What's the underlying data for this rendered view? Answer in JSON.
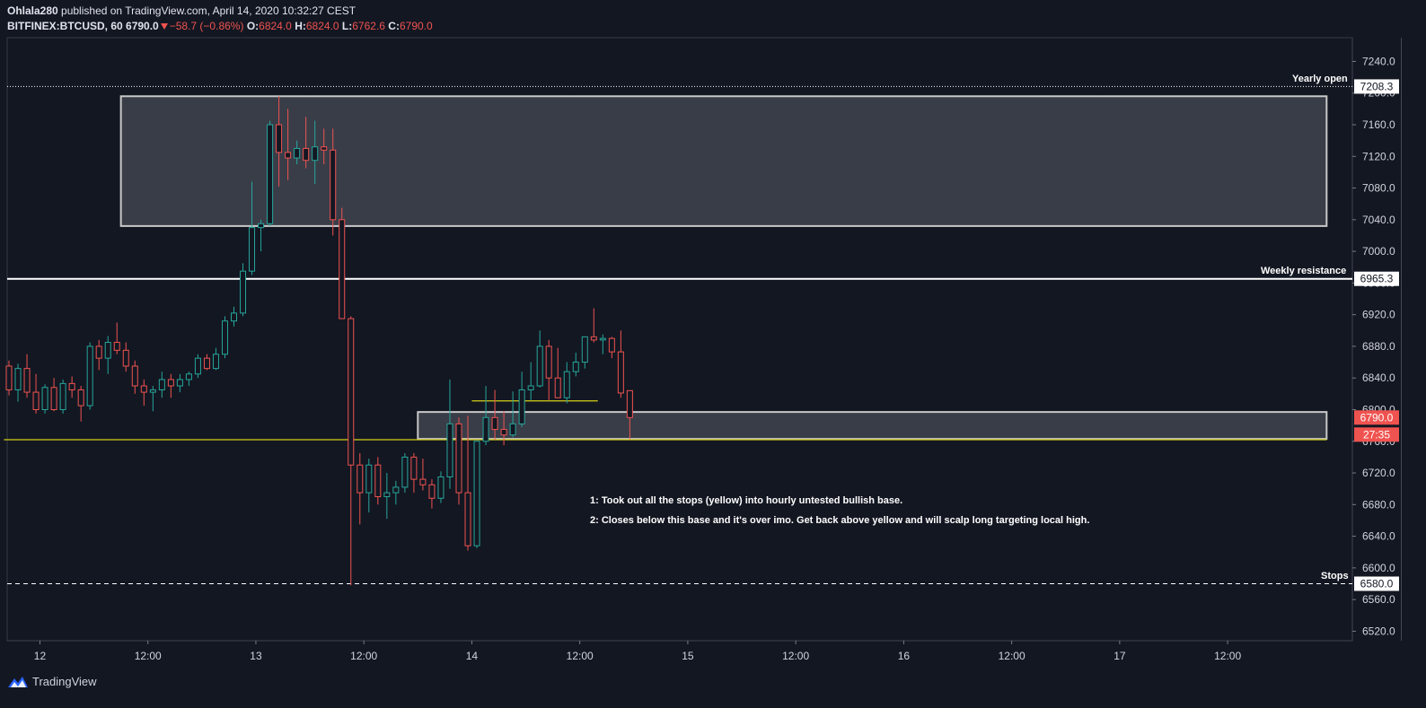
{
  "header": {
    "publisher": "Ohlala280",
    "published_text": " published on TradingView.com, April 14, 2020 10:32:27 CEST",
    "symbol": "BITFINEX:BTCUSD, 60",
    "last": "6790.0",
    "change": "−58.7 (−0.86%)",
    "o_label": "O:",
    "o": "6824.0",
    "h_label": "H:",
    "h": "6824.0",
    "l_label": "L:",
    "l": "6762.6",
    "c_label": "C:",
    "c": "6790.0"
  },
  "annotations": {
    "note1": "1: Took out all the stops (yellow) into hourly untested bullish base.",
    "note2": "2: Closes below this base and it's over imo. Get back above yellow and will scalp long targeting local high.",
    "yearly_open": "Yearly open",
    "weekly_resistance": "Weekly resistance",
    "stops": "Stops"
  },
  "price_labels": {
    "yearly": "7208.3",
    "weekly": "6965.3",
    "stops": "6580.0",
    "last": "6790.0",
    "countdown": "27:35"
  },
  "footer": {
    "brand": "TradingView"
  },
  "colors": {
    "background": "#131722",
    "up": "#26a69a",
    "down": "#ef5350",
    "yellow": "#d4d01a",
    "zone": "#787b86"
  },
  "chart_data": {
    "type": "candlestick",
    "symbol": "BITFINEX:BTCUSD",
    "interval": "60",
    "y_ticks": [
      7240,
      7200,
      7160,
      7120,
      7080,
      7040,
      7000,
      6960,
      6920,
      6880,
      6840,
      6800,
      6760,
      6720,
      6680,
      6640,
      6600,
      6560,
      6520
    ],
    "ylim": [
      6508,
      7270
    ],
    "x_ticks": [
      {
        "label": "12",
        "hour": 24
      },
      {
        "label": "12:00",
        "hour": 36
      },
      {
        "label": "13",
        "hour": 48
      },
      {
        "label": "12:00",
        "hour": 60
      },
      {
        "label": "14",
        "hour": 72
      },
      {
        "label": "12:00",
        "hour": 84
      },
      {
        "label": "15",
        "hour": 96
      },
      {
        "label": "12:00",
        "hour": 108
      },
      {
        "label": "16",
        "hour": 120
      },
      {
        "label": "12:00",
        "hour": 132
      },
      {
        "label": "17",
        "hour": 144
      },
      {
        "label": "12:00",
        "hour": 156
      }
    ],
    "levels": [
      {
        "name": "Yearly open",
        "price": 7208.3,
        "style": "dotted"
      },
      {
        "name": "Weekly resistance",
        "price": 6965.3,
        "style": "solid"
      },
      {
        "name": "Stops",
        "price": 6580.0,
        "style": "dashed"
      }
    ],
    "yellow_lines": [
      {
        "price": 6762,
        "from_hour": 20,
        "to_hour": 167
      },
      {
        "price": 6811,
        "from_hour": 72,
        "to_hour": 86
      }
    ],
    "zones": [
      {
        "top": 7196,
        "bottom": 7032,
        "from_hour": 33,
        "to_hour": 167
      },
      {
        "top": 6797,
        "bottom": 6763,
        "from_hour": 66,
        "to_hour": 167
      }
    ],
    "candles_ohlc": [
      [
        6855,
        6862,
        6818,
        6825
      ],
      [
        6825,
        6858,
        6810,
        6852
      ],
      [
        6852,
        6870,
        6815,
        6822
      ],
      [
        6822,
        6845,
        6795,
        6800
      ],
      [
        6800,
        6832,
        6795,
        6828
      ],
      [
        6828,
        6840,
        6798,
        6800
      ],
      [
        6800,
        6838,
        6795,
        6833
      ],
      [
        6833,
        6842,
        6815,
        6825
      ],
      [
        6825,
        6830,
        6785,
        6805
      ],
      [
        6805,
        6885,
        6800,
        6880
      ],
      [
        6880,
        6888,
        6850,
        6865
      ],
      [
        6865,
        6893,
        6845,
        6885
      ],
      [
        6885,
        6910,
        6870,
        6875
      ],
      [
        6875,
        6885,
        6848,
        6855
      ],
      [
        6855,
        6862,
        6820,
        6830
      ],
      [
        6830,
        6838,
        6805,
        6822
      ],
      [
        6822,
        6830,
        6798,
        6825
      ],
      [
        6825,
        6848,
        6815,
        6838
      ],
      [
        6838,
        6845,
        6815,
        6830
      ],
      [
        6830,
        6845,
        6822,
        6838
      ],
      [
        6838,
        6848,
        6830,
        6845
      ],
      [
        6845,
        6870,
        6840,
        6865
      ],
      [
        6865,
        6870,
        6850,
        6852
      ],
      [
        6852,
        6878,
        6850,
        6870
      ],
      [
        6870,
        6918,
        6865,
        6912
      ],
      [
        6912,
        6930,
        6905,
        6922
      ],
      [
        6922,
        6985,
        6918,
        6975
      ],
      [
        6975,
        7088,
        6970,
        7030
      ],
      [
        7030,
        7040,
        7000,
        7035
      ],
      [
        7035,
        7165,
        7032,
        7160
      ],
      [
        7160,
        7196,
        7082,
        7125
      ],
      [
        7125,
        7180,
        7090,
        7118
      ],
      [
        7118,
        7140,
        7110,
        7130
      ],
      [
        7130,
        7170,
        7105,
        7115
      ],
      [
        7115,
        7165,
        7085,
        7132
      ],
      [
        7132,
        7155,
        7110,
        7128
      ],
      [
        7128,
        7155,
        7020,
        7040
      ],
      [
        7040,
        7055,
        6990,
        6915
      ],
      [
        6915,
        6918,
        6578,
        6730
      ],
      [
        6730,
        6745,
        6655,
        6695
      ],
      [
        6695,
        6738,
        6670,
        6730
      ],
      [
        6730,
        6740,
        6680,
        6690
      ],
      [
        6690,
        6720,
        6662,
        6695
      ],
      [
        6695,
        6710,
        6680,
        6702
      ],
      [
        6702,
        6745,
        6695,
        6740
      ],
      [
        6740,
        6745,
        6695,
        6712
      ],
      [
        6712,
        6738,
        6698,
        6705
      ],
      [
        6705,
        6712,
        6675,
        6688
      ],
      [
        6688,
        6722,
        6682,
        6715
      ],
      [
        6715,
        6838,
        6700,
        6782
      ],
      [
        6782,
        6790,
        6680,
        6695
      ],
      [
        6695,
        6792,
        6622,
        6628
      ],
      [
        6628,
        6748,
        6625,
        6760
      ],
      [
        6760,
        6830,
        6755,
        6790
      ],
      [
        6790,
        6825,
        6762,
        6775
      ],
      [
        6775,
        6798,
        6755,
        6768
      ],
      [
        6768,
        6823,
        6765,
        6782
      ],
      [
        6782,
        6848,
        6778,
        6825
      ],
      [
        6825,
        6860,
        6812,
        6830
      ],
      [
        6830,
        6900,
        6828,
        6880
      ],
      [
        6880,
        6888,
        6812,
        6840
      ],
      [
        6840,
        6878,
        6822,
        6815
      ],
      [
        6815,
        6860,
        6808,
        6848
      ],
      [
        6848,
        6872,
        6842,
        6860
      ],
      [
        6860,
        6890,
        6852,
        6892
      ],
      [
        6892,
        6928,
        6885,
        6888
      ],
      [
        6888,
        6895,
        6870,
        6890
      ],
      [
        6890,
        6892,
        6865,
        6873
      ],
      [
        6873,
        6900,
        6815,
        6821
      ],
      [
        6824,
        6824,
        6762.6,
        6790
      ]
    ]
  }
}
